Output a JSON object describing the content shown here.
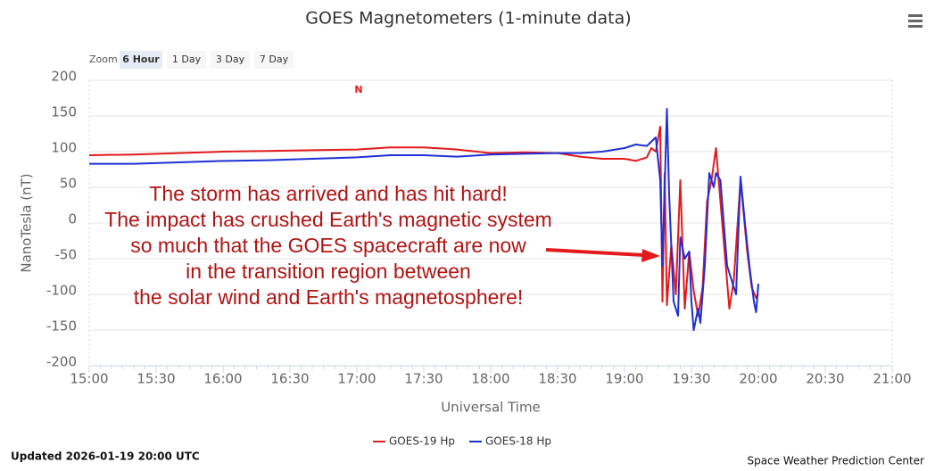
{
  "chart_data": {
    "type": "line",
    "title": "GOES Magnetometers (1-minute data)",
    "x_label": "Universal Time",
    "y_label": "NanoTesla (nT)",
    "xlim": [
      "15:00",
      "21:00"
    ],
    "xticks": [
      "15:00",
      "15:30",
      "16:00",
      "16:30",
      "17:00",
      "17:30",
      "18:00",
      "18:30",
      "19:00",
      "19:30",
      "20:00",
      "20:30",
      "21:00"
    ],
    "ylim": [
      -200,
      200
    ],
    "yticks": [
      -200,
      -150,
      -100,
      -50,
      0,
      50,
      100,
      150,
      200
    ],
    "grid": true,
    "legend": "bottom",
    "event_marker": "N",
    "annotation": [
      "The storm has arrived and has hit hard!",
      "The impact has crushed Earth's magnetic system",
      "so much that the GOES spacecraft are now",
      "in the transition region between",
      "the solar wind and Earth's magnetosphere!"
    ],
    "series": [
      {
        "name": "GOES-19 Hp",
        "color": "#e31a1c",
        "x": [
          "15:00",
          "15:20",
          "15:40",
          "16:00",
          "16:20",
          "16:40",
          "17:00",
          "17:15",
          "17:30",
          "17:45",
          "18:00",
          "18:15",
          "18:30",
          "18:40",
          "18:50",
          "19:00",
          "19:05",
          "19:10",
          "19:12",
          "19:14",
          "19:16",
          "19:17",
          "19:18",
          "19:19",
          "19:21",
          "19:23",
          "19:25",
          "19:27",
          "19:29",
          "19:31",
          "19:33",
          "19:35",
          "19:37",
          "19:39",
          "19:41",
          "19:43",
          "19:47",
          "19:49",
          "19:52",
          "19:55",
          "19:57",
          "19:59",
          "20:00"
        ],
        "values": [
          95,
          96,
          98,
          100,
          101,
          102,
          103,
          106,
          106,
          103,
          98,
          99,
          98,
          93,
          90,
          90,
          87,
          92,
          105,
          100,
          135,
          -110,
          70,
          -115,
          -30,
          -100,
          60,
          -120,
          -40,
          -95,
          -130,
          -90,
          30,
          60,
          105,
          30,
          -120,
          -80,
          60,
          -40,
          -90,
          -105,
          -100
        ]
      },
      {
        "name": "GOES-18 Hp",
        "color": "#1f2fd6",
        "x": [
          "15:00",
          "15:20",
          "15:40",
          "16:00",
          "16:20",
          "16:40",
          "17:00",
          "17:15",
          "17:30",
          "17:45",
          "18:00",
          "18:15",
          "18:30",
          "18:40",
          "18:50",
          "19:00",
          "19:05",
          "19:10",
          "19:14",
          "19:16",
          "19:17",
          "19:19",
          "19:20",
          "19:22",
          "19:24",
          "19:25",
          "19:27",
          "19:29",
          "19:30",
          "19:31",
          "19:33",
          "19:34",
          "19:36",
          "19:38",
          "19:40",
          "19:41",
          "19:43",
          "19:45",
          "19:46",
          "19:49",
          "19:50",
          "19:52",
          "19:54",
          "19:56",
          "19:58",
          "19:59",
          "20:00"
        ],
        "values": [
          83,
          83,
          85,
          87,
          88,
          90,
          92,
          95,
          95,
          93,
          96,
          97,
          98,
          98,
          100,
          105,
          110,
          108,
          120,
          60,
          -60,
          160,
          40,
          -110,
          -130,
          -20,
          -50,
          -40,
          -110,
          -150,
          -120,
          -140,
          -60,
          70,
          50,
          70,
          60,
          -20,
          -60,
          -90,
          -100,
          65,
          0,
          -60,
          -110,
          -125,
          -85
        ]
      }
    ]
  },
  "controls": {
    "zoom_label": "Zoom",
    "zoom_buttons": [
      "6 Hour",
      "1 Day",
      "3 Day",
      "7 Day"
    ]
  },
  "footer": {
    "updated": "Updated 2026-01-19 20:00 UTC",
    "credit": "Space Weather Prediction Center"
  }
}
